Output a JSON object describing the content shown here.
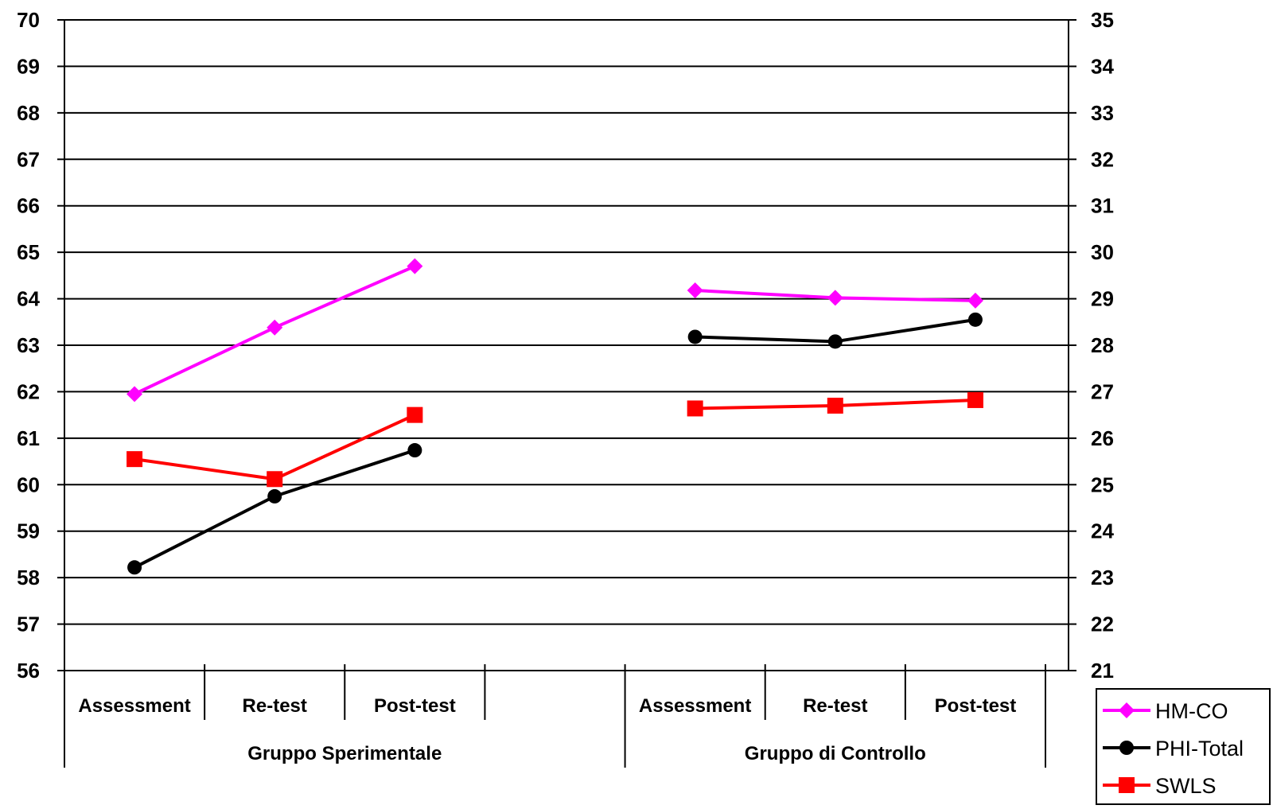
{
  "chart_data": {
    "type": "line",
    "left_axis": {
      "ylim": [
        56,
        70
      ],
      "ticks": [
        56,
        57,
        58,
        59,
        60,
        61,
        62,
        63,
        64,
        65,
        66,
        67,
        68,
        69,
        70
      ]
    },
    "right_axis": {
      "ylim": [
        21,
        35
      ],
      "ticks": [
        21,
        22,
        23,
        24,
        25,
        26,
        27,
        28,
        29,
        30,
        31,
        32,
        33,
        34,
        35
      ]
    },
    "categories": [
      "Assessment",
      "Re-test",
      "Post-test",
      "",
      "Assessment",
      "Re-test",
      "Post-test"
    ],
    "groups": [
      {
        "label": "Gruppo Sperimentale",
        "categories": [
          "Assessment",
          "Re-test",
          "Post-test",
          ""
        ]
      },
      {
        "label": "Gruppo di Controllo",
        "categories": [
          "Assessment",
          "Re-test",
          "Post-test"
        ]
      }
    ],
    "grid": true,
    "legend_position": "bottom-right",
    "series": [
      {
        "name": "HM-CO",
        "axis": "left",
        "color": "#ff00ff",
        "marker": "diamond",
        "values": [
          61.95,
          63.38,
          64.7,
          null,
          64.18,
          64.02,
          63.96
        ]
      },
      {
        "name": "PHI-Total",
        "axis": "right",
        "color": "#000000",
        "marker": "circle",
        "values": [
          23.22,
          24.75,
          25.74,
          null,
          28.18,
          28.08,
          28.55
        ]
      },
      {
        "name": "SWLS",
        "axis": "right",
        "color": "#ff0000",
        "marker": "square",
        "values": [
          25.55,
          25.12,
          26.5,
          null,
          26.64,
          26.7,
          26.82
        ]
      }
    ]
  }
}
